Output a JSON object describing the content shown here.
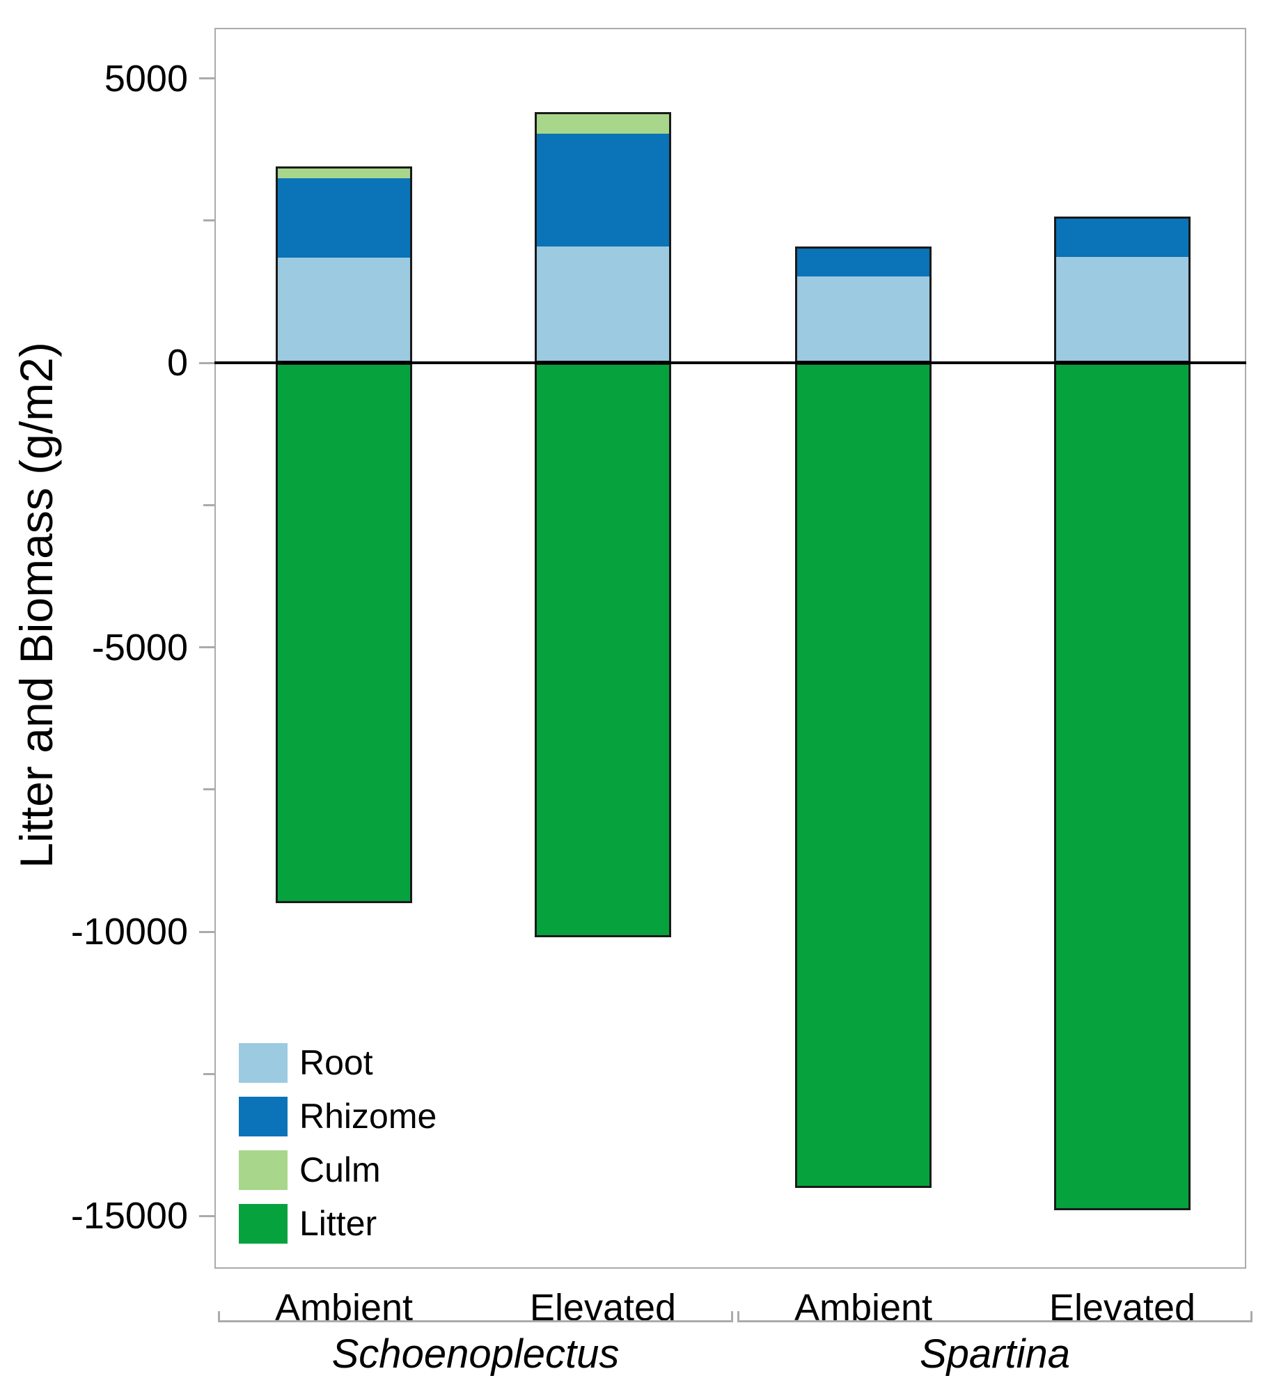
{
  "chart_data": {
    "type": "bar",
    "stacked": true,
    "title": "",
    "ylabel": "Litter and Biomass (g/m2)",
    "ylim": [
      -15925,
      5890
    ],
    "grid": false,
    "legend_position": "inside-bottom-left",
    "yticks_major": [
      5000,
      0,
      -5000,
      -10000,
      -15000
    ],
    "ytick_labels": [
      "5000",
      "0",
      "-5000",
      "-10000",
      "-15000"
    ],
    "yticks_minor": [
      2500,
      -2500,
      -7500,
      -12500
    ],
    "categories": [
      "Schoenoplectus Ambient",
      "Schoenoplectus Elevated",
      "Spartina Ambient",
      "Spartina Elevated"
    ],
    "groups": [
      {
        "species": "Schoenoplectus",
        "treatments": [
          "Ambient",
          "Elevated"
        ]
      },
      {
        "species": "Spartina",
        "treatments": [
          "Ambient",
          "Elevated"
        ]
      }
    ],
    "series": [
      {
        "name": "Root",
        "color": "#9CCAE1",
        "values": [
          1850,
          2040,
          1520,
          1860
        ]
      },
      {
        "name": "Rhizome",
        "color": "#0B73B7",
        "values": [
          1390,
          1990,
          520,
          710
        ]
      },
      {
        "name": "Culm",
        "color": "#A8D78B",
        "values": [
          210,
          380,
          0,
          0
        ]
      },
      {
        "name": "Litter",
        "color": "#06A23E",
        "values": [
          -9500,
          -10100,
          -14500,
          -14900
        ]
      }
    ],
    "bar_totals_positive": [
      3450,
      4410,
      2040,
      2570
    ],
    "axis_color": "#ABABAB",
    "bar_outline_color": "#1A1A1A",
    "zero_line_color": "#000000"
  }
}
